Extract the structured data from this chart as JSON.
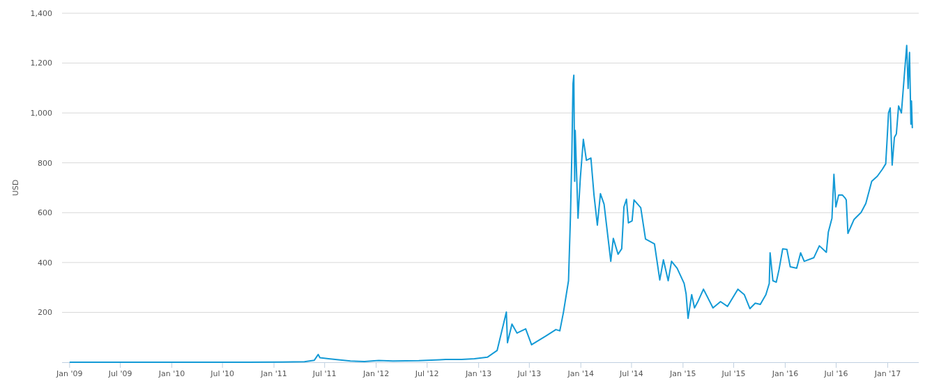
{
  "chart_data": {
    "type": "line",
    "ylabel": "USD",
    "grid": "y",
    "marker": "none",
    "line_style": "solid",
    "xlim": [
      "2008-12-05",
      "2017-04-22"
    ],
    "ylim": [
      0,
      1400
    ],
    "yticks": [
      200,
      400,
      600,
      800,
      {
        "value": 1000,
        "label": "1,000"
      },
      {
        "value": 1200,
        "label": "1,200"
      },
      {
        "value": 1400,
        "label": "1,400"
      }
    ],
    "xticks": [
      {
        "value": "2009-01-01",
        "label": "Jan '09"
      },
      {
        "value": "2009-07-01",
        "label": "Jul '09"
      },
      {
        "value": "2010-01-01",
        "label": "Jan '10"
      },
      {
        "value": "2010-07-01",
        "label": "Jul '10"
      },
      {
        "value": "2011-01-01",
        "label": "Jan '11"
      },
      {
        "value": "2011-07-01",
        "label": "Jul '11"
      },
      {
        "value": "2012-01-01",
        "label": "Jan '12"
      },
      {
        "value": "2012-07-01",
        "label": "Jul '12"
      },
      {
        "value": "2013-01-01",
        "label": "Jan '13"
      },
      {
        "value": "2013-07-01",
        "label": "Jul '13"
      },
      {
        "value": "2014-01-01",
        "label": "Jan '14"
      },
      {
        "value": "2014-07-01",
        "label": "Jul '14"
      },
      {
        "value": "2015-01-01",
        "label": "Jan '15"
      },
      {
        "value": "2015-07-01",
        "label": "Jul '15"
      },
      {
        "value": "2016-01-01",
        "label": "Jan '16"
      },
      {
        "value": "2016-07-01",
        "label": "Jul '16"
      },
      {
        "value": "2017-01-01",
        "label": "Jan '17"
      }
    ],
    "x": [
      "2009-01-03",
      "2010-10-01",
      "2011-02-01",
      "2011-04-20",
      "2011-05-25",
      "2011-06-08",
      "2011-06-14",
      "2011-07-15",
      "2011-10-01",
      "2011-11-20",
      "2012-01-10",
      "2012-03-01",
      "2012-06-01",
      "2012-08-15",
      "2012-09-05",
      "2012-11-01",
      "2012-12-17",
      "2013-02-01",
      "2013-03-08",
      "2013-04-10",
      "2013-04-14",
      "2013-04-30",
      "2013-05-18",
      "2013-06-18",
      "2013-07-09",
      "2013-08-30",
      "2013-10-04",
      "2013-10-18",
      "2013-10-31",
      "2013-11-18",
      "2013-11-25",
      "2013-11-30",
      "2013-12-04",
      "2013-12-07",
      "2013-12-10",
      "2013-12-12",
      "2013-12-22",
      "2013-12-30",
      "2014-01-10",
      "2014-01-21",
      "2014-02-06",
      "2014-02-17",
      "2014-03-01",
      "2014-03-12",
      "2014-03-25",
      "2014-04-18",
      "2014-04-27",
      "2014-05-14",
      "2014-05-27",
      "2014-06-04",
      "2014-06-13",
      "2014-06-20",
      "2014-07-03",
      "2014-07-10",
      "2014-08-03",
      "2014-08-20",
      "2014-09-21",
      "2014-10-10",
      "2014-10-23",
      "2014-11-09",
      "2014-11-21",
      "2014-12-11",
      "2015-01-05",
      "2015-01-12",
      "2015-01-19",
      "2015-02-01",
      "2015-02-11",
      "2015-02-23",
      "2015-03-15",
      "2015-04-18",
      "2015-05-15",
      "2015-06-09",
      "2015-07-16",
      "2015-08-08",
      "2015-08-28",
      "2015-09-16",
      "2015-10-04",
      "2015-10-24",
      "2015-11-05",
      "2015-11-08",
      "2015-11-18",
      "2015-11-30",
      "2015-12-10",
      "2015-12-23",
      "2016-01-07",
      "2016-01-19",
      "2016-02-11",
      "2016-02-25",
      "2016-03-09",
      "2016-04-12",
      "2016-05-02",
      "2016-05-27",
      "2016-06-03",
      "2016-06-16",
      "2016-06-23",
      "2016-06-30",
      "2016-07-10",
      "2016-07-23",
      "2016-08-01",
      "2016-08-06",
      "2016-08-12",
      "2016-09-03",
      "2016-09-28",
      "2016-10-15",
      "2016-11-05",
      "2016-11-25",
      "2016-12-13",
      "2016-12-25",
      "2016-12-30",
      "2017-01-04",
      "2017-01-10",
      "2017-01-17",
      "2017-01-25",
      "2017-02-01",
      "2017-02-09",
      "2017-02-19",
      "2017-03-03",
      "2017-03-10",
      "2017-03-15",
      "2017-03-20",
      "2017-03-25",
      "2017-03-27",
      "2017-03-30"
    ],
    "series": [
      {
        "color": "#139ad6",
        "values": [
          0,
          0,
          1,
          2,
          8,
          31,
          18,
          14,
          5,
          3,
          7,
          5,
          6,
          10,
          11,
          11,
          14,
          20,
          47,
          201,
          78,
          153,
          117,
          134,
          70,
          106,
          131,
          126,
          201,
          327,
          587,
          838,
          1117,
          1151,
          726,
          930,
          578,
          735,
          894,
          810,
          819,
          671,
          550,
          676,
          634,
          405,
          497,
          433,
          455,
          623,
          654,
          559,
          567,
          651,
          620,
          494,
          475,
          330,
          411,
          327,
          405,
          377,
          316,
          274,
          176,
          271,
          218,
          243,
          293,
          218,
          243,
          224,
          293,
          271,
          215,
          237,
          232,
          271,
          316,
          439,
          327,
          321,
          372,
          455,
          453,
          383,
          377,
          439,
          405,
          419,
          467,
          441,
          522,
          578,
          754,
          623,
          671,
          671,
          660,
          651,
          517,
          573,
          601,
          637,
          726,
          746,
          774,
          796,
          894,
          1000,
          1020,
          791,
          902,
          916,
          1028,
          1000,
          1173,
          1271,
          1098,
          1243,
          955,
          1048,
          941
        ]
      }
    ]
  }
}
